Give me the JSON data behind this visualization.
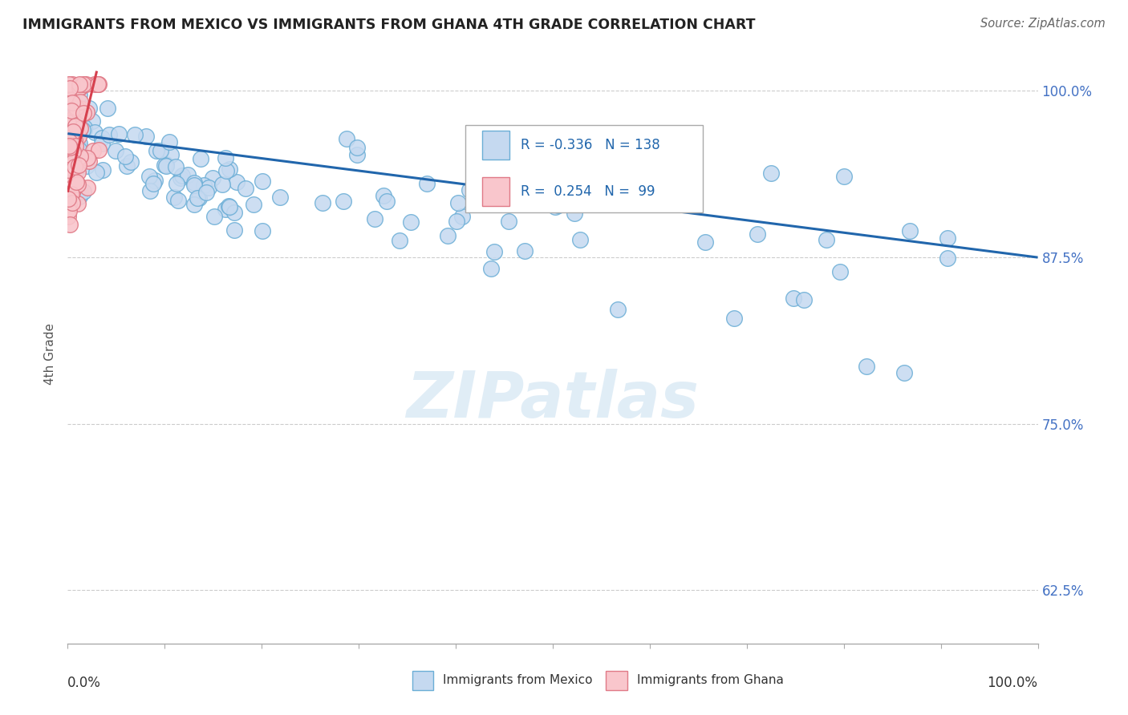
{
  "title": "IMMIGRANTS FROM MEXICO VS IMMIGRANTS FROM GHANA 4TH GRADE CORRELATION CHART",
  "source": "Source: ZipAtlas.com",
  "ylabel": "4th Grade",
  "legend_mexico": "Immigrants from Mexico",
  "legend_ghana": "Immigrants from Ghana",
  "R_mexico": -0.336,
  "N_mexico": 138,
  "R_ghana": 0.254,
  "N_ghana": 99,
  "mexico_color": "#c5d9f0",
  "mexico_edge": "#6baed6",
  "ghana_color": "#f9c6cc",
  "ghana_edge": "#e07a87",
  "trend_mexico_color": "#2166ac",
  "trend_ghana_color": "#d6404e",
  "background_color": "#ffffff",
  "ytick_labels": [
    "62.5%",
    "75.0%",
    "87.5%",
    "100.0%"
  ],
  "ytick_values": [
    0.625,
    0.75,
    0.875,
    1.0
  ],
  "ymin": 0.585,
  "ymax": 1.02,
  "xmin": 0.0,
  "xmax": 1.0,
  "trend_mex_x0": 0.0,
  "trend_mex_y0": 0.968,
  "trend_mex_x1": 1.0,
  "trend_mex_y1": 0.875,
  "trend_gha_x0": 0.0,
  "trend_gha_y0": 0.924,
  "trend_gha_x1": 0.03,
  "trend_gha_y1": 1.015,
  "watermark_text": "ZIPatlas",
  "watermark_fontsize": 58,
  "watermark_color": "#c8dff0",
  "watermark_alpha": 0.55
}
